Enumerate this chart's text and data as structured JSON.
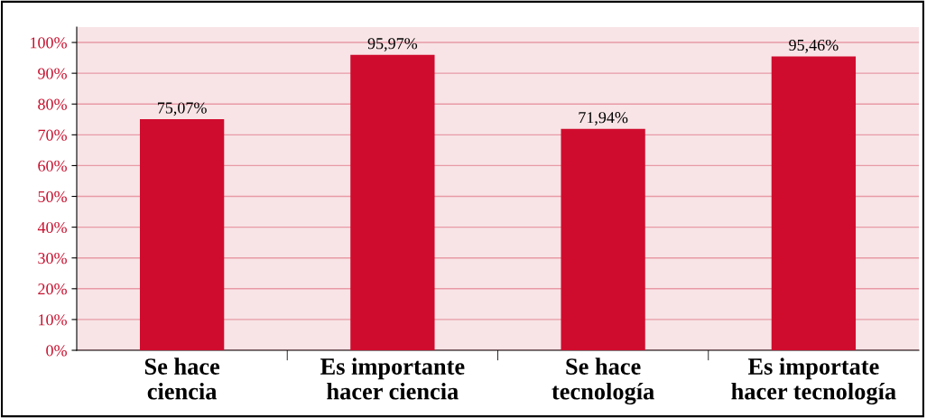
{
  "chart_data": {
    "type": "bar",
    "categories": [
      "Se hace\nciencia",
      "Es importante\nhacer ciencia",
      "Se hace\ntecnología",
      "Es importate\nhacer tecnología"
    ],
    "values": [
      75.07,
      95.97,
      71.94,
      95.46
    ],
    "value_labels": [
      "75,07%",
      "95,97%",
      "71,94%",
      "95,46%"
    ],
    "color": "#d00c2e",
    "ylim": [
      0,
      105
    ],
    "yticks": [
      {
        "value": 0,
        "label": "0%"
      },
      {
        "value": 10,
        "label": "10%"
      },
      {
        "value": 20,
        "label": "20%"
      },
      {
        "value": 30,
        "label": "30%"
      },
      {
        "value": 40,
        "label": "40%"
      },
      {
        "value": 50,
        "label": "50%"
      },
      {
        "value": 60,
        "label": "60%"
      },
      {
        "value": 70,
        "label": "70%"
      },
      {
        "value": 80,
        "label": "80%"
      },
      {
        "value": 90,
        "label": "90%"
      },
      {
        "value": 100,
        "label": "100%"
      }
    ],
    "grid": "y"
  }
}
